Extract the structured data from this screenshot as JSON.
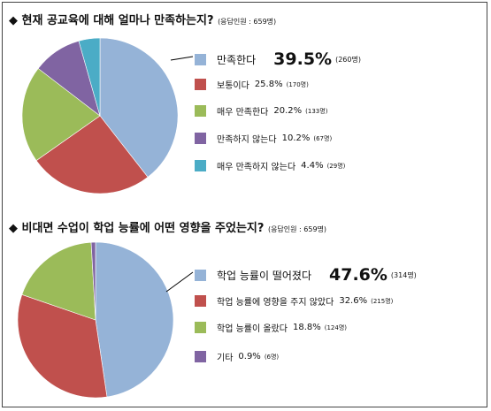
{
  "chart_data": [
    {
      "type": "pie",
      "title": "◆ 현재 공교육에 대해 얼마나 만족하는지?",
      "note": "(응답인원 : 659명)",
      "series": [
        {
          "label": "만족한다",
          "value": 39.5,
          "count": "(260명)",
          "color": "#95b3d7"
        },
        {
          "label": "보통이다",
          "value": 25.8,
          "count": "(170명)",
          "color": "#c0504d"
        },
        {
          "label": "매우 만족한다",
          "value": 20.2,
          "count": "(133명)",
          "color": "#9bbb59"
        },
        {
          "label": "만족하지 않는다",
          "value": 10.2,
          "count": "(67명)",
          "color": "#8064a2"
        },
        {
          "label": "매우 만족하지 않는다",
          "value": 4.4,
          "count": "(29명)",
          "color": "#4bacc6"
        }
      ]
    },
    {
      "type": "pie",
      "title": "◆ 비대면 수업이 학업 능률에 어떤 영향을 주었는지?",
      "note": "(응답인원 : 659명)",
      "series": [
        {
          "label": "학업 능률이 떨어졌다",
          "value": 47.6,
          "count": "(314명)",
          "color": "#95b3d7"
        },
        {
          "label": "학업 능률에 영향을 주지 않았다",
          "value": 32.6,
          "count": "(215명)",
          "color": "#c0504d"
        },
        {
          "label": "학업 능률이 올랐다",
          "value": 18.8,
          "count": "(124명)",
          "color": "#9bbb59"
        },
        {
          "label": "기타",
          "value": 0.9,
          "count": "(6명)",
          "color": "#8064a2"
        }
      ]
    }
  ]
}
